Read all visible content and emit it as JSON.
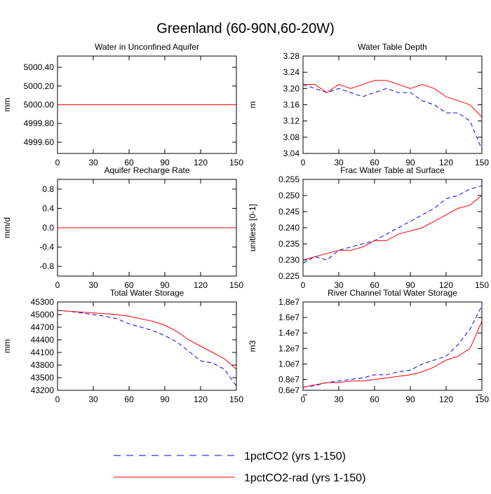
{
  "title": "Greenland (60-90N,60-20W)",
  "legend": [
    {
      "name": "1pctCO2 (yrs 1-150)",
      "color": "#0000ff",
      "dashed": true
    },
    {
      "name": "1pctCO2-rad (yrs 1-150)",
      "color": "#ff0000",
      "dashed": false
    }
  ],
  "chart_data": [
    {
      "type": "line",
      "title": "Water in Unconfined Aquifer",
      "y_label": "mm",
      "x": [
        0,
        10,
        20,
        30,
        40,
        50,
        60,
        70,
        80,
        90,
        100,
        110,
        120,
        130,
        140,
        150
      ],
      "xlim": [
        0,
        150
      ],
      "xticks": [
        0,
        30,
        60,
        90,
        120,
        150
      ],
      "ylim": [
        4999.48,
        5000.52
      ],
      "yticks": [
        {
          "value": 4999.6,
          "label": "4999.60"
        },
        {
          "value": 4999.8,
          "label": "4999.80"
        },
        {
          "value": 5000,
          "label": "5000.00"
        },
        {
          "value": 5000.2,
          "label": "5000.20"
        },
        {
          "value": 5000.4,
          "label": "5000.40"
        }
      ],
      "series": [
        {
          "values": [
            5000,
            5000,
            5000,
            5000,
            5000,
            5000,
            5000,
            5000,
            5000,
            5000,
            5000,
            5000,
            5000,
            5000,
            5000,
            5000
          ]
        },
        {
          "values": [
            5000,
            5000,
            5000,
            5000,
            5000,
            5000,
            5000,
            5000,
            5000,
            5000,
            5000,
            5000,
            5000,
            5000,
            5000,
            5000
          ]
        }
      ]
    },
    {
      "type": "line",
      "title": "Water Table Depth",
      "y_label": "m",
      "x": [
        0,
        10,
        20,
        30,
        40,
        50,
        60,
        70,
        80,
        90,
        100,
        110,
        120,
        130,
        140,
        150
      ],
      "xlim": [
        0,
        150
      ],
      "xticks": [
        0,
        30,
        60,
        90,
        120,
        150
      ],
      "ylim": [
        3.04,
        3.28
      ],
      "yticks": [
        3.04,
        3.08,
        3.12,
        3.16,
        {
          "value": 3.2,
          "label": "3.20"
        },
        3.24,
        3.28
      ],
      "series": [
        {
          "values": [
            3.21,
            3.2,
            3.19,
            3.2,
            3.19,
            3.18,
            3.19,
            3.2,
            3.19,
            3.19,
            3.17,
            3.16,
            3.14,
            3.14,
            3.12,
            3.05
          ]
        },
        {
          "values": [
            3.21,
            3.21,
            3.19,
            3.21,
            3.2,
            3.21,
            3.22,
            3.22,
            3.21,
            3.2,
            3.21,
            3.2,
            3.18,
            3.17,
            3.16,
            3.13
          ]
        }
      ]
    },
    {
      "type": "line",
      "title": "Aquifer Recharge Rate",
      "y_label": "mm/d",
      "x": [
        0,
        10,
        20,
        30,
        40,
        50,
        60,
        70,
        80,
        90,
        100,
        110,
        120,
        130,
        140,
        150
      ],
      "xlim": [
        0,
        150
      ],
      "xticks": [
        0,
        30,
        60,
        90,
        120,
        150
      ],
      "ylim": [
        -1,
        1
      ],
      "yticks": [
        -0.8,
        -0.4,
        {
          "value": 0,
          "label": "0.0"
        },
        0.4,
        0.8
      ],
      "series": [
        {
          "values": [
            0,
            0,
            0,
            0,
            0,
            0,
            0,
            0,
            0,
            0,
            0,
            0,
            0,
            0,
            0,
            0
          ]
        },
        {
          "values": [
            0,
            0,
            0,
            0,
            0,
            0,
            0,
            0,
            0,
            0,
            0,
            0,
            0,
            0,
            0,
            0
          ]
        }
      ]
    },
    {
      "type": "line",
      "title": "Frac Water Table at Surface",
      "y_label": "unitless [0-1]",
      "x": [
        0,
        10,
        20,
        30,
        40,
        50,
        60,
        70,
        80,
        90,
        100,
        110,
        120,
        130,
        140,
        150
      ],
      "xlim": [
        0,
        150
      ],
      "xticks": [
        0,
        30,
        60,
        90,
        120,
        150
      ],
      "ylim": [
        0.225,
        0.255
      ],
      "yticks": [
        0.225,
        {
          "value": 0.23,
          "label": "0.230"
        },
        0.235,
        {
          "value": 0.24,
          "label": "0.240"
        },
        0.245,
        {
          "value": 0.25,
          "label": "0.250"
        },
        0.255
      ],
      "series": [
        {
          "values": [
            0.229,
            0.231,
            0.23,
            0.233,
            0.234,
            0.235,
            0.236,
            0.238,
            0.24,
            0.242,
            0.244,
            0.246,
            0.249,
            0.25,
            0.252,
            0.253
          ]
        },
        {
          "values": [
            0.23,
            0.231,
            0.232,
            0.233,
            0.233,
            0.234,
            0.236,
            0.236,
            0.238,
            0.239,
            0.24,
            0.242,
            0.244,
            0.246,
            0.247,
            0.25
          ]
        }
      ]
    },
    {
      "type": "line",
      "title": "Total Water Storage",
      "y_label": "mm",
      "x": [
        0,
        10,
        20,
        30,
        40,
        50,
        60,
        70,
        80,
        90,
        100,
        110,
        120,
        130,
        140,
        150
      ],
      "xlim": [
        0,
        150
      ],
      "xticks": [
        0,
        30,
        60,
        90,
        120,
        150
      ],
      "ylim": [
        43200,
        45300
      ],
      "yticks": [
        43200,
        43500,
        43800,
        44100,
        44400,
        44700,
        45000,
        45300
      ],
      "series": [
        {
          "values": [
            45100,
            45080,
            45040,
            45000,
            44960,
            44900,
            44780,
            44700,
            44620,
            44500,
            44350,
            44130,
            43900,
            43850,
            43700,
            43300
          ]
        },
        {
          "values": [
            45100,
            45080,
            45060,
            45040,
            45020,
            45000,
            44960,
            44900,
            44840,
            44750,
            44600,
            44400,
            44250,
            44100,
            43950,
            43700
          ]
        }
      ]
    },
    {
      "type": "line",
      "title": "River Channel Total Water Storage",
      "y_label": "m3",
      "x": [
        0,
        10,
        20,
        30,
        40,
        50,
        60,
        70,
        80,
        90,
        100,
        110,
        120,
        130,
        140,
        150
      ],
      "xlim": [
        0,
        150
      ],
      "xticks": [
        0,
        30,
        60,
        90,
        120,
        150
      ],
      "ylim": [
        6600000,
        18000000
      ],
      "yticks": [
        {
          "value": 6000000,
          "label": "0.6e7"
        },
        {
          "value": 8000000,
          "label": "0.8e7"
        },
        {
          "value": 10000000,
          "label": "1.0e7"
        },
        {
          "value": 12000000,
          "label": "1.2e7"
        },
        {
          "value": 14000000,
          "label": "1.4e7"
        },
        {
          "value": 16000000,
          "label": "1.6e7"
        },
        {
          "value": 18000000,
          "label": "1.8e7"
        }
      ],
      "series": [
        {
          "values": [
            7000000,
            7200000,
            7600000,
            7800000,
            8000000,
            8200000,
            8600000,
            8600000,
            9000000,
            9200000,
            10000000,
            10500000,
            11000000,
            12500000,
            14500000,
            17500000
          ]
        },
        {
          "values": [
            7000000,
            7300000,
            7600000,
            7600000,
            7800000,
            7800000,
            8000000,
            8200000,
            8400000,
            8600000,
            9000000,
            9600000,
            10500000,
            11000000,
            12000000,
            15500000
          ]
        }
      ]
    }
  ]
}
